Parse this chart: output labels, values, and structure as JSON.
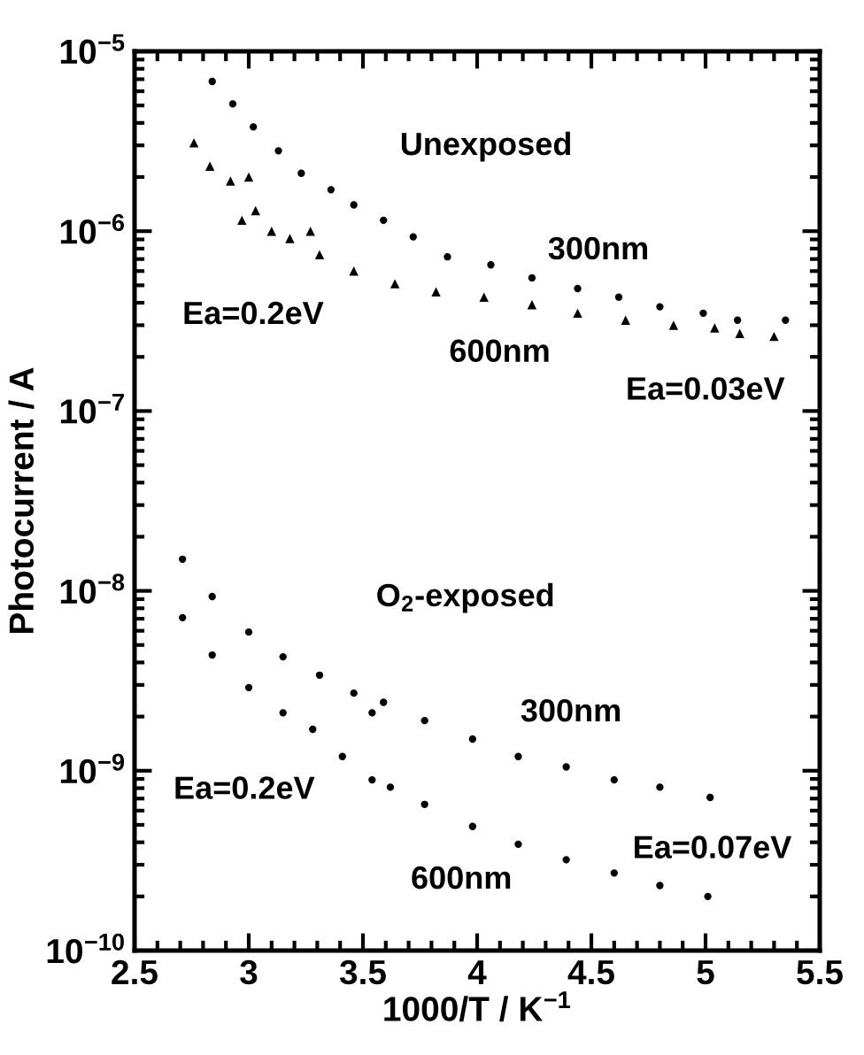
{
  "chart_data": {
    "type": "scatter",
    "xlabel": "1000/T / K$^{−1}$",
    "ylabel": "Photocurrent / A",
    "log": "y",
    "grid": false,
    "xlim": [
      2.5,
      5.5
    ],
    "xticks": [
      2.5,
      3,
      3.5,
      4,
      4.5,
      5,
      5.5
    ],
    "ylim": [
      1e-10,
      1e-05
    ],
    "yticks": [
      {
        "value": 1e-10,
        "label": "10$^{−10}$"
      },
      {
        "value": 1e-09,
        "label": "10$^{−9}$"
      },
      {
        "value": 1e-08,
        "label": "10$^{−8}$"
      },
      {
        "value": 1e-07,
        "label": "10$^{−7}$"
      },
      {
        "value": 1e-06,
        "label": "10$^{−6}$"
      },
      {
        "value": 1e-05,
        "label": "10$^{−5}$"
      }
    ],
    "series": [
      {
        "color": "#000000",
        "marker": "circle",
        "x": [
          2.84,
          2.93,
          3.02,
          3.13,
          3.23,
          3.36,
          3.46,
          3.59,
          3.72,
          3.87,
          4.06,
          4.24,
          4.44,
          4.62,
          4.8,
          4.99,
          5.14,
          5.35
        ],
        "values": [
          6.8e-06,
          5.1e-06,
          3.8e-06,
          2.8e-06,
          2.1e-06,
          1.7e-06,
          1.4e-06,
          1.15e-06,
          9.3e-07,
          7.2e-07,
          6.5e-07,
          5.5e-07,
          4.8e-07,
          4.3e-07,
          3.8e-07,
          3.5e-07,
          3.2e-07,
          3.2e-07
        ]
      },
      {
        "color": "#000000",
        "marker": "triangle",
        "x": [
          2.76,
          2.83,
          2.92,
          3.0,
          2.97,
          3.03,
          3.1,
          3.18,
          3.27,
          3.31,
          3.46,
          3.64,
          3.82,
          4.03,
          4.24,
          4.44,
          4.65,
          4.86,
          5.04,
          5.15,
          5.3
        ],
        "values": [
          3.1e-06,
          2.3e-06,
          1.9e-06,
          2e-06,
          1.15e-06,
          1.3e-06,
          1e-06,
          9.1e-07,
          1e-06,
          7.4e-07,
          6e-07,
          5.1e-07,
          4.6e-07,
          4.3e-07,
          3.9e-07,
          3.5e-07,
          3.2e-07,
          3e-07,
          2.9e-07,
          2.7e-07,
          2.6e-07
        ]
      },
      {
        "color": "#000000",
        "marker": "circle",
        "x": [
          2.71,
          2.84,
          3.0,
          3.15,
          3.31,
          3.46,
          3.54,
          3.59,
          3.77,
          3.98,
          4.18,
          4.39,
          4.6,
          4.8,
          5.02
        ],
        "values": [
          1.5e-08,
          9.3e-09,
          5.9e-09,
          4.3e-09,
          3.4e-09,
          2.7e-09,
          2.1e-09,
          2.4e-09,
          1.9e-09,
          1.5e-09,
          1.2e-09,
          1.05e-09,
          8.9e-10,
          8.1e-10,
          7.1e-10
        ]
      },
      {
        "color": "#000000",
        "marker": "circle",
        "x": [
          2.71,
          2.84,
          3.0,
          3.15,
          3.28,
          3.41,
          3.54,
          3.62,
          3.77,
          3.98,
          4.18,
          4.39,
          4.6,
          4.8,
          5.01
        ],
        "values": [
          7.1e-09,
          4.4e-09,
          2.9e-09,
          2.1e-09,
          1.7e-09,
          1.2e-09,
          8.9e-10,
          8.1e-10,
          6.5e-10,
          4.9e-10,
          3.9e-10,
          3.2e-10,
          2.7e-10,
          2.3e-10,
          2e-10
        ]
      }
    ],
    "annotations": [
      "Unexposed",
      "300nm",
      "Ea=0.2eV",
      "600nm",
      "Ea=0.03eV",
      "O$_{2}$-exposed",
      "300nm",
      "Ea=0.2eV",
      "Ea=0.07eV",
      "600nm"
    ]
  }
}
